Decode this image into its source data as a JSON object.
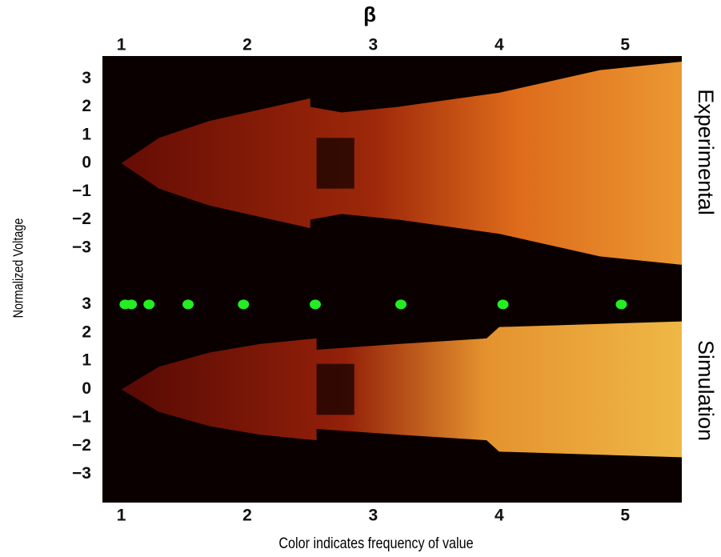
{
  "chart_data": [
    {
      "type": "heatmap",
      "title": "Experimental",
      "xlabel": "β",
      "ylabel": "Normalized Voltage",
      "xlim": [
        0.85,
        5.45
      ],
      "xticks": [
        1,
        2,
        3,
        4,
        5
      ],
      "ylim": [
        -4,
        3.8
      ],
      "yticks": [
        3,
        2,
        1,
        0,
        {
          "value": -1,
          "label": "−1"
        },
        {
          "value": -2,
          "label": "−2"
        },
        {
          "value": -3,
          "label": "−3"
        }
      ]
    },
    {
      "type": "scatter",
      "title": "Simulation",
      "xlabel": "Color indicates frequency of value",
      "xlim": [
        0.85,
        5.45
      ],
      "xticks": [
        1,
        2,
        3,
        4,
        5
      ],
      "ylim": [
        -4,
        4
      ],
      "yticks": [
        3,
        2,
        1,
        0,
        {
          "value": -1,
          "label": "−1"
        },
        {
          "value": -2,
          "label": "−2"
        },
        {
          "value": -3,
          "label": "−3"
        }
      ],
      "series": [
        {
          "color": "#22ee22",
          "x": [
            1.03,
            1.08,
            1.22,
            1.53,
            1.97,
            2.54,
            3.22,
            4.03,
            4.97
          ],
          "values": [
            3,
            3,
            3,
            3,
            3,
            3,
            3,
            3,
            3
          ]
        }
      ]
    }
  ]
}
